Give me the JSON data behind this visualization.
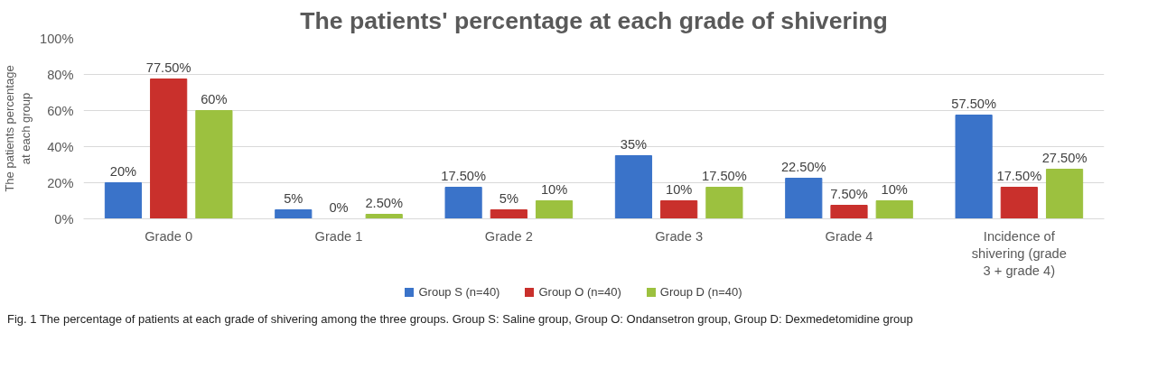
{
  "chart_data": {
    "type": "bar",
    "title": "The patients' percentage at each grade of shivering",
    "ylabel": "The patients percentage at each group",
    "categories": [
      "Grade 0",
      "Grade 1",
      "Grade 2",
      "Grade 3",
      "Grade 4",
      "Incidence of shivering (grade 3 + grade 4)"
    ],
    "series": [
      {
        "name": "Group S (n=40)",
        "color": "#3a73c9",
        "values": [
          20,
          5,
          17.5,
          35,
          22.5,
          57.5
        ],
        "value_labels": [
          "20%",
          "5%",
          "17.50%",
          "35%",
          "22.50%",
          "57.50%"
        ]
      },
      {
        "name": "Group O (n=40)",
        "color": "#c9302c",
        "values": [
          77.5,
          0,
          5,
          10,
          7.5,
          17.5
        ],
        "value_labels": [
          "77.50%",
          "0%",
          "5%",
          "10%",
          "7.50%",
          "17.50%"
        ]
      },
      {
        "name": "Group D (n=40)",
        "color": "#9cc13f",
        "values": [
          60,
          2.5,
          10,
          17.5,
          10,
          27.5
        ],
        "value_labels": [
          "60%",
          "2.50%",
          "10%",
          "17.50%",
          "10%",
          "27.50%"
        ]
      }
    ],
    "ylim": [
      0,
      100
    ],
    "yticks": [
      {
        "value": 0,
        "label": "0%"
      },
      {
        "value": 20,
        "label": "20%"
      },
      {
        "value": 40,
        "label": "40%"
      },
      {
        "value": 60,
        "label": "60%"
      },
      {
        "value": 80,
        "label": "80%"
      },
      {
        "value": 100,
        "label": "100%"
      }
    ],
    "grid": "y",
    "legend": "bottom",
    "annotations": [
      "Fig. 1 The percentage of patients at each grade of shivering among the three groups. Group S: Saline group, Group O: Ondansetron group, Group D: Dexmedetomidine group"
    ]
  }
}
